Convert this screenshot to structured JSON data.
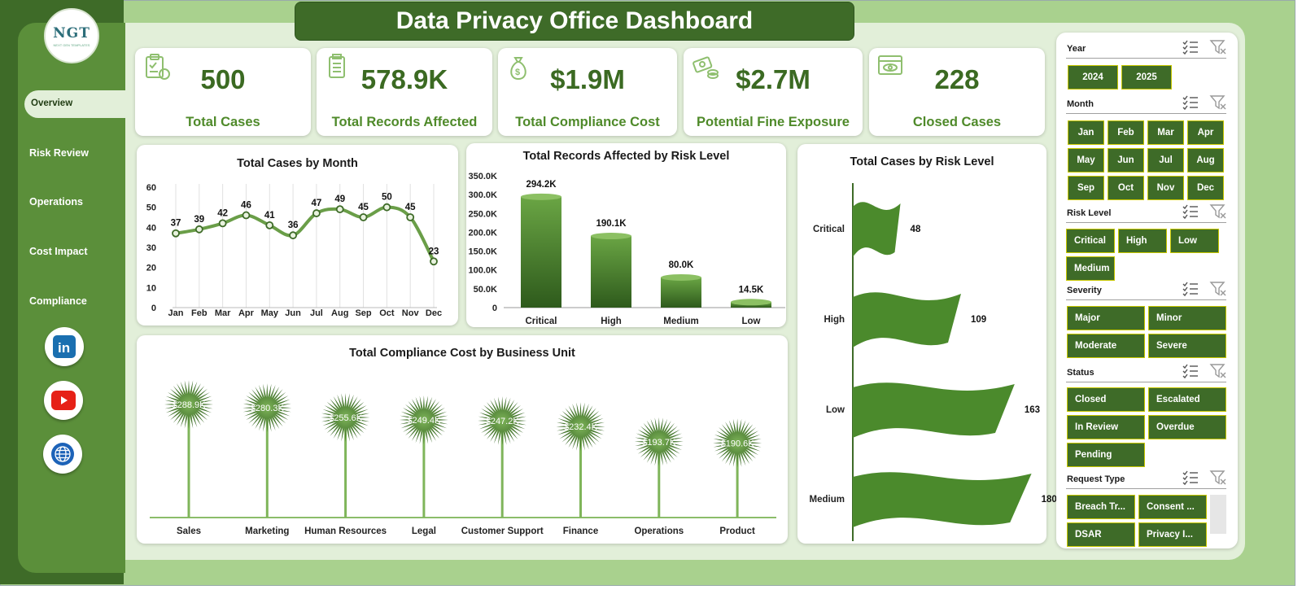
{
  "app": {
    "title": "Data Privacy Office Dashboard",
    "logo_text": "NGT",
    "logo_sub": "NEXT GEN TEMPLATES"
  },
  "nav": {
    "items": [
      "Overview",
      "Risk Review",
      "Operations",
      "Cost Impact",
      "Compliance"
    ],
    "active": "Overview",
    "social": [
      "linkedin-icon",
      "youtube-icon",
      "globe-icon"
    ]
  },
  "kpis": [
    {
      "value": "500",
      "label": "Total Cases",
      "icon": "clipboard-check-icon"
    },
    {
      "value": "578.9K",
      "label": "Total Records Affected",
      "icon": "document-list-icon"
    },
    {
      "value": "$1.9M",
      "label": "Total Compliance Cost",
      "icon": "money-bag-icon"
    },
    {
      "value": "$2.7M",
      "label": "Potential Fine Exposure",
      "icon": "cash-coins-icon"
    },
    {
      "value": "228",
      "label": "Closed Cases",
      "icon": "eye-monitor-icon"
    }
  ],
  "colors": {
    "dark_green": "#3e6b28",
    "mid_green": "#5b8f3a",
    "light_green": "#a9d18e",
    "pale_green": "#e2efd9",
    "chart_green": "#4f8a2a"
  },
  "chart_data": [
    {
      "type": "line",
      "title": "Total Cases by Month",
      "categories": [
        "Jan",
        "Feb",
        "Mar",
        "Apr",
        "May",
        "Jun",
        "Jul",
        "Aug",
        "Sep",
        "Oct",
        "Nov",
        "Dec"
      ],
      "values": [
        37,
        39,
        42,
        46,
        41,
        36,
        47,
        49,
        45,
        50,
        45,
        23
      ],
      "ylim": [
        0,
        60
      ],
      "yticks": [
        0,
        10,
        20,
        30,
        40,
        50,
        60
      ],
      "grid": "vertical"
    },
    {
      "type": "bar",
      "title": "Total Records Affected by Risk Level",
      "categories": [
        "Critical",
        "High",
        "Medium",
        "Low"
      ],
      "values": [
        294200,
        190100,
        80000,
        14500
      ],
      "labels": [
        "294.2K",
        "190.1K",
        "80.0K",
        "14.5K"
      ],
      "ylim": [
        0,
        350000
      ],
      "yticks": [
        "0",
        "50.0K",
        "100.0K",
        "150.0K",
        "200.0K",
        "250.0K",
        "300.0K",
        "350.0K"
      ]
    },
    {
      "type": "bar",
      "title": "Total Compliance Cost by Business Unit",
      "categories": [
        "Sales",
        "Marketing",
        "Human Resources",
        "Legal",
        "Customer Support",
        "Finance",
        "Operations",
        "Product"
      ],
      "values": [
        288900,
        280300,
        255600,
        249400,
        247200,
        232400,
        193700,
        190600
      ],
      "labels": [
        "$288.9K",
        "$280.3K",
        "$255.6K",
        "$249.4K",
        "$247.2K",
        "$232.4K",
        "$193.7K",
        "$190.6K"
      ],
      "ylim": [
        0,
        320000
      ]
    },
    {
      "type": "bar",
      "title": "Total Cases by Risk Level",
      "categories": [
        "Critical",
        "High",
        "Low",
        "Medium"
      ],
      "values": [
        48,
        109,
        163,
        180
      ],
      "orientation": "horizontal"
    }
  ],
  "slicers": {
    "year": {
      "title": "Year",
      "options": [
        "2024",
        "2025"
      ]
    },
    "month": {
      "title": "Month",
      "options": [
        "Jan",
        "Feb",
        "Mar",
        "Apr",
        "May",
        "Jun",
        "Jul",
        "Aug",
        "Sep",
        "Oct",
        "Nov",
        "Dec"
      ]
    },
    "risk": {
      "title": "Risk Level",
      "options": [
        "Critical",
        "High",
        "Low",
        "Medium"
      ]
    },
    "severity": {
      "title": "Severity",
      "options": [
        "Major",
        "Minor",
        "Moderate",
        "Severe"
      ]
    },
    "status": {
      "title": "Status",
      "options": [
        "Closed",
        "Escalated",
        "In Review",
        "Overdue",
        "Pending"
      ]
    },
    "request": {
      "title": "Request Type",
      "options": [
        "Breach Tr...",
        "Consent ...",
        "DSAR",
        "Privacy I..."
      ]
    }
  }
}
